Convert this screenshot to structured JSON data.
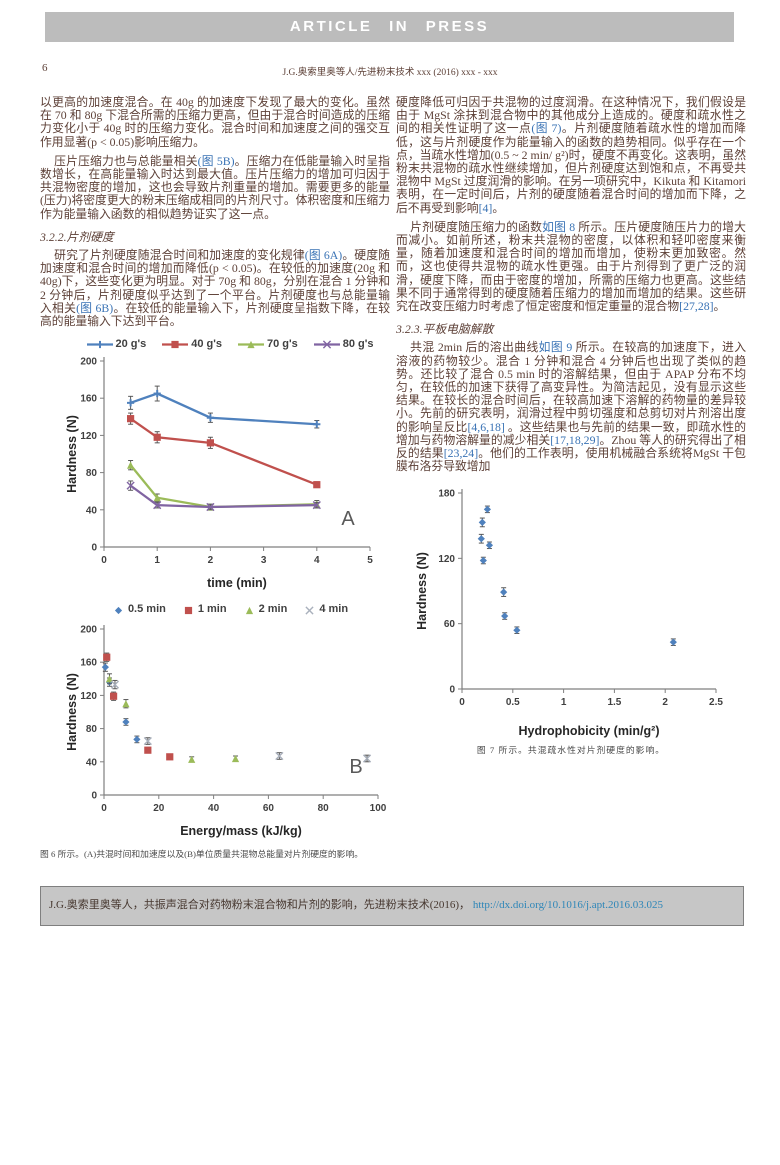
{
  "page": {
    "banner": "ARTICLE IN PRESS",
    "page_number": "6",
    "running_head": "J.G.奥索里奥等人/先进粉末技术 xxx (2016) xxx - xxx"
  },
  "colors": {
    "body_text": "#5d4037",
    "reference_link": "#3a73b5",
    "doi_link": "#2e86b8",
    "banner_bg": "#bcbcbc",
    "footer_bg": "#c6c6c6",
    "series_blue": "#4f81bd",
    "series_red": "#c0504d",
    "series_green": "#9bbb59",
    "series_purple": "#8064a2",
    "series_gray": "#a9b0bc"
  },
  "left": {
    "p1": [
      {
        "t": "以更高的加速度混合。在 40g 的加速度下发现了最大的变化。虽然在 70 和 80g 下混合所需的压缩力更高，但由于混合时间造成的压缩力变化小于 40g 时的压缩力变化。混合时间和加速度之间的强交互作用显著(p < 0.05)影响压缩力。"
      }
    ],
    "p2": [
      {
        "t": "压片压缩力也与总能量相关"
      },
      {
        "t": "(图 5B)",
        "link": true
      },
      {
        "t": "。压缩力在低能量输入时呈指数增长，在高能量输入时达到最大值。压片压缩力的增加可归因于共混物密度的增加，这也会导致片剂重量的增加。需要更多的能量(压力)将密度更大的粉末压缩成相同的片剂尺寸。体积密度和压缩力作为能量输入函数的相似趋势证实了这一点。"
      }
    ],
    "section_heading": "3.2.2.片剂硬度",
    "p3": [
      {
        "t": "研究了片剂硬度随混合时间和加速度的变化规律"
      },
      {
        "t": "(图 6A)",
        "link": true
      },
      {
        "t": "。硬度随加速度和混合时间的增加而降低(p < 0.05)。在较低的加速度(20g 和 40g)下，这些变化更为明显。对于 70g 和 80g，分别在混合 1 分钟和 2 分钟后，片剂硬度似乎达到了一个平台。片剂硬度也与总能量输入相关"
      },
      {
        "t": "(图 6B)",
        "link": true
      },
      {
        "t": "。在较低的能量输入下，片剂硬度呈指数下降，在较高的能量输入下达到平台。"
      }
    ],
    "fig6_caption": "图 6 所示。(A)共混时间和加速度以及(B)单位质量共混物总能量对片剂硬度的影响。"
  },
  "right": {
    "p1": [
      {
        "t": "硬度降低可归因于共混物的过度润滑。在这种情况下，我们假设是由于 MgSt 涂抹到混合物中的其他成分上造成的。硬度和疏水性之间的相关性证明了这一点"
      },
      {
        "t": "(图 7)",
        "link": true
      },
      {
        "t": "。片剂硬度随着疏水性的增加而降低，这与片剂硬度作为能量输入的函数的趋势相同。似乎存在一个点，当疏水性增加(0.5 ~ 2 min/ g²)时，硬度不再变化。这表明，虽然粉末共混物的疏水性继续增加，但片剂硬度达到饱和点，不再受共混物中 MgSt 过度润滑的影响。在另一项研究中，Kikuta 和 Kitamori 表明，在一定时间后，片剂的硬度随着混合时间的增加而下降，之后不再受到影响"
      },
      {
        "t": "[4]",
        "link": true
      },
      {
        "t": "。"
      }
    ],
    "p2": [
      {
        "t": "片剂硬度随压缩力的函数"
      },
      {
        "t": "如图 8",
        "link": true
      },
      {
        "t": " 所示。压片硬度随压片力的增大而减小。如前所述，粉末共混物的密度，以体积和轻叩密度来衡量，随着加速度和混合时间的增加而增加，使粉末更加致密。然而，这也使得共混物的疏水性更强。由于片剂得到了更广泛的润滑，硬度下降，而由于密度的增加，所需的压缩力也更高。这些结果不同于通常得到的硬度随着压缩力的增加而增加的结果。这些研究在改变压缩力时考虑了恒定密度和恒定重量的混合物"
      },
      {
        "t": "[27,28]",
        "link": true
      },
      {
        "t": "。"
      }
    ],
    "section_heading": "3.2.3.平板电脑解散",
    "p3": [
      {
        "t": "共混 2min 后的溶出曲线"
      },
      {
        "t": "如图 9",
        "link": true
      },
      {
        "t": " 所示。在较高的加速度下，进入溶液的药物较少。混合 1 分钟和混合 4 分钟后也出现了类似的趋势。还比较了混合 0.5 min 时的溶解结果，但由于 APAP 分布不均匀，在较低的加速下获得了高变异性。为简洁起见，没有显示这些结果。在较长的混合时间后，在较高加速下溶解的药物量的差异较小。先前的研究表明，润滑过程中剪切强度和总剪切对片剂溶出度的影响呈反比"
      },
      {
        "t": "[4,6,18]",
        "link": true
      },
      {
        "t": " 。这些结果也与先前的结果一致，即疏水性的增加与药物溶解量的减少相关"
      },
      {
        "t": "[17,18,29]",
        "link": true
      },
      {
        "t": "。Zhou 等人的研究得出了相反的结果"
      },
      {
        "t": "[23,24]",
        "link": true
      },
      {
        "t": "。他们的工作表明，使用机械融合系统将MgSt 干包膜布洛芬导致增加"
      }
    ],
    "fig7_caption": "图 7 所示。共混疏水性对片剂硬度的影响。"
  },
  "footer": {
    "citation": "J.G.奥索里奥等人，共振声混合对药物粉末混合物和片剂的影响，先进粉末技术(2016)，",
    "doi": "http://dx.doi.org/10.1016/j.apt.2016.03.025"
  },
  "chart_data": {
    "figA": {
      "type": "line",
      "xlabel": "time (min)",
      "ylabel": "Hardness (N)",
      "xmin": 0,
      "xmax": 5,
      "xticks": [
        0,
        1,
        2,
        3,
        4,
        5
      ],
      "ymin": 0,
      "ymax": 200,
      "yticks": [
        0,
        40,
        80,
        120,
        160,
        200
      ],
      "annotation": "A",
      "legend_line": true,
      "margins": {
        "l": 40,
        "r": 16,
        "t": 8,
        "b": 46
      },
      "series": [
        {
          "name": "20 g's",
          "color": "#4f81bd",
          "marker": "plus",
          "points": [
            [
              0.5,
              155,
              7
            ],
            [
              1,
              165,
              8
            ],
            [
              2,
              139,
              5
            ],
            [
              4,
              132,
              4
            ]
          ]
        },
        {
          "name": "40 g's",
          "color": "#c0504d",
          "marker": "square",
          "points": [
            [
              0.5,
              138,
              6
            ],
            [
              1,
              118,
              6
            ],
            [
              2,
              112,
              6
            ],
            [
              4,
              67,
              3
            ]
          ]
        },
        {
          "name": "70 g's",
          "color": "#9bbb59",
          "marker": "triangle",
          "points": [
            [
              0.5,
              88,
              5
            ],
            [
              1,
              53,
              4
            ],
            [
              2,
              43,
              3
            ],
            [
              4,
              46,
              4
            ]
          ]
        },
        {
          "name": "80 g's",
          "color": "#8064a2",
          "marker": "x",
          "points": [
            [
              0.5,
              66,
              5
            ],
            [
              1,
              45,
              3
            ],
            [
              2,
              43,
              3
            ],
            [
              4,
              45,
              3
            ]
          ]
        }
      ]
    },
    "figB": {
      "type": "scatter",
      "xlabel": "Energy/mass (kJ/kg)",
      "ylabel": "Hardness (N)",
      "xmin": 0,
      "xmax": 100,
      "xticks": [
        0,
        20,
        40,
        60,
        80,
        100
      ],
      "ymin": 0,
      "ymax": 200,
      "yticks": [
        0,
        40,
        80,
        120,
        160,
        200
      ],
      "annotation": "B",
      "legend_line": false,
      "margins": {
        "l": 40,
        "r": 16,
        "t": 10,
        "b": 46
      },
      "series": [
        {
          "name": "0.5 min",
          "color": "#4f81bd",
          "marker": "diamond",
          "points": [
            [
              0.5,
              154,
              5
            ],
            [
              2,
              136,
              5
            ],
            [
              8,
              88,
              4
            ],
            [
              12,
              67,
              4
            ]
          ]
        },
        {
          "name": "1 min",
          "color": "#c0504d",
          "marker": "square",
          "points": [
            [
              1,
              166,
              5
            ],
            [
              3.5,
              119,
              5
            ],
            [
              16,
              54,
              3
            ],
            [
              24,
              46,
              3
            ]
          ]
        },
        {
          "name": "2 min",
          "color": "#9bbb59",
          "marker": "triangle",
          "points": [
            [
              2,
              140,
              6
            ],
            [
              8,
              110,
              5
            ],
            [
              32,
              43,
              3
            ],
            [
              48,
              44,
              3
            ]
          ]
        },
        {
          "name": "4 min",
          "color": "#a9b0bc",
          "marker": "x",
          "points": [
            [
              4,
              133,
              5
            ],
            [
              16,
              65,
              4
            ],
            [
              64,
              47,
              4
            ],
            [
              96,
              44,
              4
            ]
          ]
        }
      ]
    },
    "fig7": {
      "type": "scatter",
      "xlabel": "Hydrophobicity (min/g²)",
      "ylabel": "Hardness (N)",
      "xmin": 0,
      "xmax": 2.5,
      "xticks": [
        0,
        0.5,
        1,
        1.5,
        2,
        2.5
      ],
      "ymin": 0,
      "ymax": 180,
      "yticks": [
        0,
        60,
        120,
        180
      ],
      "annotation": "",
      "legend_line": false,
      "margins": {
        "l": 48,
        "r": 18,
        "t": 12,
        "b": 52
      },
      "series": [
        {
          "name": "blend hydrophobicity",
          "color": "#4f81bd",
          "marker": "diamond",
          "points": [
            [
              0.19,
              138,
              4
            ],
            [
              0.2,
              153,
              4
            ],
            [
              0.21,
              118,
              3
            ],
            [
              0.25,
              165,
              3
            ],
            [
              0.27,
              132,
              3
            ],
            [
              0.41,
              89,
              4
            ],
            [
              0.42,
              67,
              3
            ],
            [
              0.54,
              54,
              3
            ],
            [
              2.08,
              43,
              3
            ]
          ]
        }
      ]
    }
  }
}
